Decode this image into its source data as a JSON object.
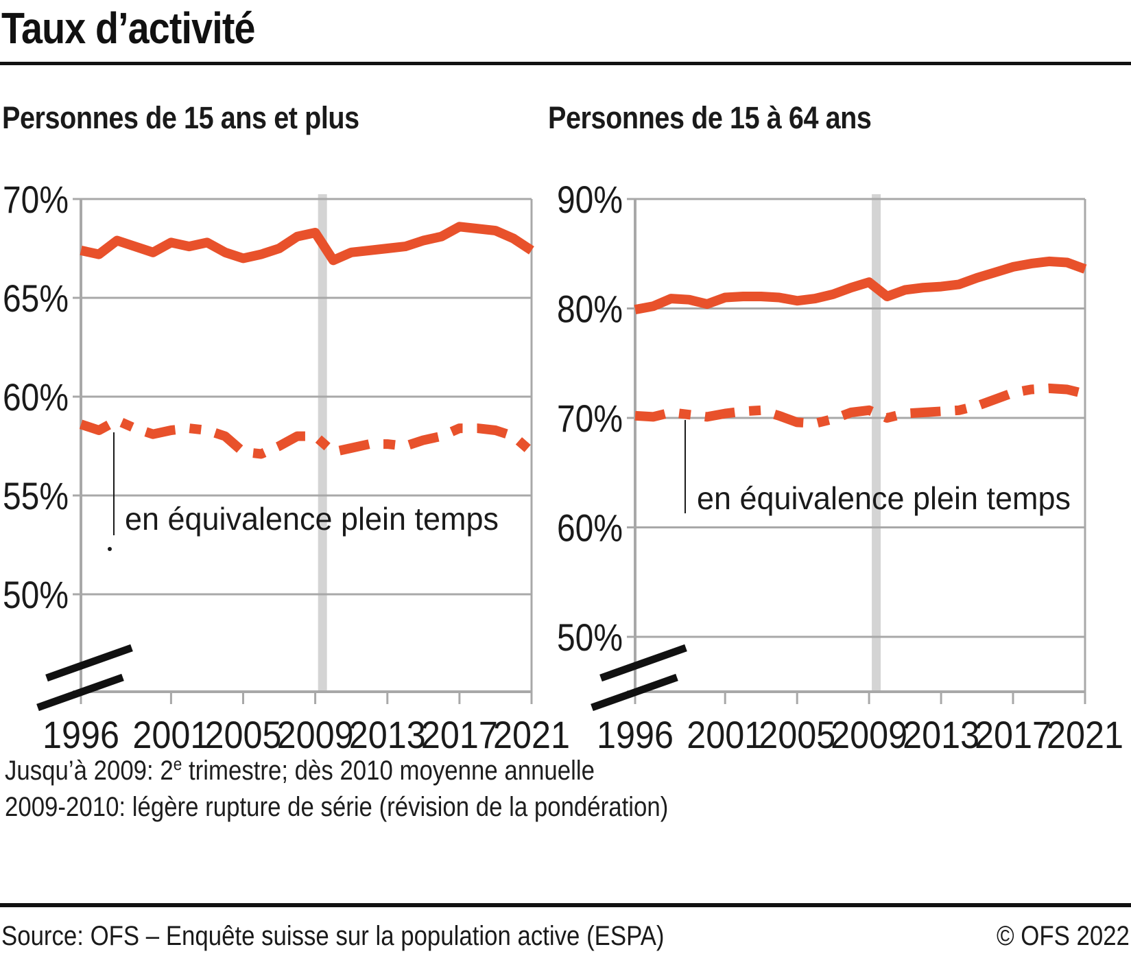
{
  "header": {
    "title": "Taux d’activité"
  },
  "subtitles": {
    "left": "Personnes de 15 ans et plus",
    "right": "Personnes de 15 à 64 ans"
  },
  "notes": {
    "line1_prefix": "Jusqu’à 2009: 2",
    "line1_sup": "e",
    "line1_rest": " trimestre; dès 2010 moyenne annuelle",
    "line2": "2009-2010: légère rupture de série (révision de la pondération)"
  },
  "footer": {
    "source": "Source: OFS – Enquête suisse sur la population active (ESPA)",
    "copyright": "© OFS 2022"
  },
  "colors": {
    "line": "#E8512B",
    "grid": "#A8A8A8",
    "break_bar": "#D4D4D4",
    "text": "#1A1A1A"
  },
  "chart_data": [
    {
      "type": "line",
      "title": "Personnes de 15 ans et plus",
      "xlabel": "",
      "ylabel": "",
      "ylim": [
        50,
        70
      ],
      "grid": true,
      "axis_break_below": 50,
      "break_band_x": 2009.4,
      "annotation": "en équivalence plein temps",
      "x": [
        1996,
        1997,
        1998,
        1999,
        2000,
        2001,
        2002,
        2003,
        2004,
        2005,
        2006,
        2007,
        2008,
        2009,
        2010,
        2011,
        2012,
        2013,
        2014,
        2015,
        2016,
        2017,
        2018,
        2019,
        2020,
        2021
      ],
      "x_tick_years": [
        1996,
        2001,
        2005,
        2009,
        2013,
        2017,
        2021
      ],
      "x_tick_labels": [
        "1996",
        "2001",
        "2005",
        "2009",
        "2013",
        "2017",
        "2021"
      ],
      "y_tick_values": [
        70,
        65,
        60,
        55,
        50
      ],
      "y_tick_labels": [
        "70%",
        "65%",
        "60%",
        "55%",
        "50%"
      ],
      "series": [
        {
          "name": "Taux d’activité",
          "style": "solid",
          "values": [
            67.4,
            67.2,
            67.9,
            67.6,
            67.3,
            67.8,
            67.6,
            67.8,
            67.3,
            67.0,
            67.2,
            67.5,
            68.1,
            68.3,
            66.9,
            67.3,
            67.4,
            67.5,
            67.6,
            67.9,
            68.1,
            68.6,
            68.5,
            68.4,
            68.0,
            67.4
          ]
        },
        {
          "name": "Taux d’activité en équivalence plein temps",
          "style": "dashdot",
          "values": [
            58.6,
            58.3,
            58.8,
            58.4,
            58.1,
            58.3,
            58.4,
            58.3,
            58.0,
            57.2,
            57.1,
            57.5,
            58.0,
            58.0,
            57.2,
            57.4,
            57.6,
            57.6,
            57.5,
            57.8,
            58.0,
            58.4,
            58.4,
            58.3,
            58.0,
            57.2
          ]
        }
      ]
    },
    {
      "type": "line",
      "title": "Personnes de 15 à 64 ans",
      "xlabel": "",
      "ylabel": "",
      "ylim": [
        50,
        90
      ],
      "grid": true,
      "axis_break_below": 50,
      "break_band_x": 2009.4,
      "annotation": "en équivalence plein temps",
      "x": [
        1996,
        1997,
        1998,
        1999,
        2000,
        2001,
        2002,
        2003,
        2004,
        2005,
        2006,
        2007,
        2008,
        2009,
        2010,
        2011,
        2012,
        2013,
        2014,
        2015,
        2016,
        2017,
        2018,
        2019,
        2020,
        2021
      ],
      "x_tick_years": [
        1996,
        2001,
        2005,
        2009,
        2013,
        2017,
        2021
      ],
      "x_tick_labels": [
        "1996",
        "2001",
        "2005",
        "2009",
        "2013",
        "2017",
        "2021"
      ],
      "y_tick_values": [
        90,
        80,
        70,
        60,
        50
      ],
      "y_tick_labels": [
        "90%",
        "80%",
        "70%",
        "60%",
        "50%"
      ],
      "series": [
        {
          "name": "Taux d’activité",
          "style": "solid",
          "values": [
            79.9,
            80.2,
            80.9,
            80.8,
            80.4,
            81.0,
            81.1,
            81.1,
            81.0,
            80.7,
            80.9,
            81.3,
            81.9,
            82.4,
            81.1,
            81.7,
            81.9,
            82.0,
            82.2,
            82.8,
            83.3,
            83.8,
            84.1,
            84.3,
            84.2,
            83.6
          ]
        },
        {
          "name": "Taux d’activité en équivalence plein temps",
          "style": "dashdot",
          "values": [
            70.2,
            70.1,
            70.5,
            70.3,
            70.1,
            70.4,
            70.6,
            70.7,
            70.2,
            69.6,
            69.5,
            69.9,
            70.5,
            70.7,
            70.0,
            70.4,
            70.5,
            70.6,
            70.7,
            71.1,
            71.7,
            72.3,
            72.6,
            72.7,
            72.6,
            72.2
          ]
        }
      ]
    }
  ]
}
